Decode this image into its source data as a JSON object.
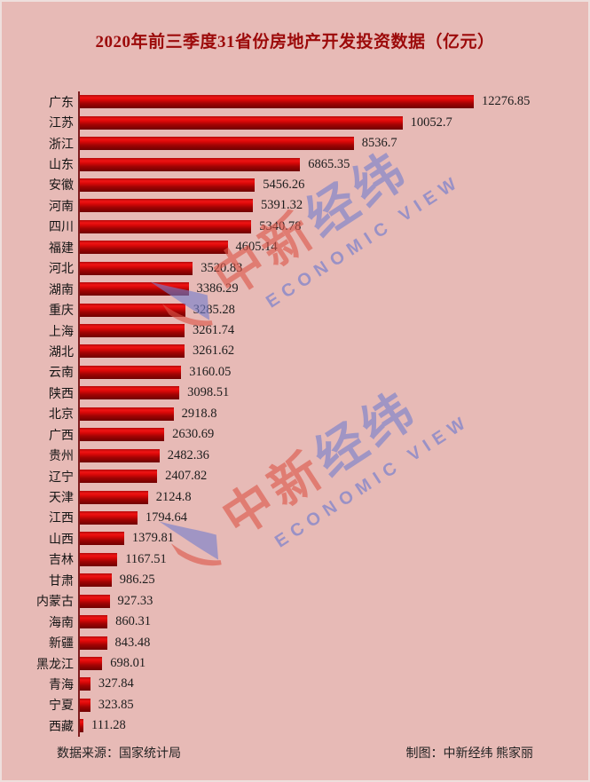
{
  "title": "2020年前三季度31省份房地产开发投资数据（亿元）",
  "chart_data": {
    "type": "bar",
    "orientation": "horizontal",
    "title": "2020年前三季度31省份房地产开发投资数据（亿元）",
    "unit": "亿元",
    "xlim": [
      0,
      12276.85
    ],
    "grid": false,
    "value_labels_shown": true,
    "categories": [
      "广东",
      "江苏",
      "浙江",
      "山东",
      "安徽",
      "河南",
      "四川",
      "福建",
      "河北",
      "湖南",
      "重庆",
      "上海",
      "湖北",
      "云南",
      "陕西",
      "北京",
      "广西",
      "贵州",
      "辽宁",
      "天津",
      "江西",
      "山西",
      "吉林",
      "甘肃",
      "内蒙古",
      "海南",
      "新疆",
      "黑龙江",
      "青海",
      "宁夏",
      "西藏"
    ],
    "values": [
      12276.85,
      10052.7,
      8536.7,
      6865.35,
      5456.26,
      5391.32,
      5340.78,
      4605.14,
      3520.83,
      3386.29,
      3285.28,
      3261.74,
      3261.62,
      3160.05,
      3098.51,
      2918.8,
      2630.69,
      2482.36,
      2407.82,
      2124.8,
      1794.64,
      1379.81,
      1167.51,
      986.25,
      927.33,
      860.31,
      843.48,
      698.01,
      327.84,
      323.85,
      111.28
    ]
  },
  "footer": {
    "source": "数据来源：国家统计局",
    "credit": "制图：中新经纬 熊家丽"
  },
  "watermark": {
    "cn_left": "中新",
    "cn_right": "经纬",
    "en": "ECONOMIC VIEW"
  },
  "colors": {
    "background": "#e7bab6",
    "title_text": "#9c0a0a",
    "bar_red": "#d90808",
    "bar_dark": "#700101",
    "axis_line": "#7d1b1d",
    "label_text": "#141414",
    "watermark_red": "#db554a",
    "watermark_blue": "#747ecd"
  }
}
